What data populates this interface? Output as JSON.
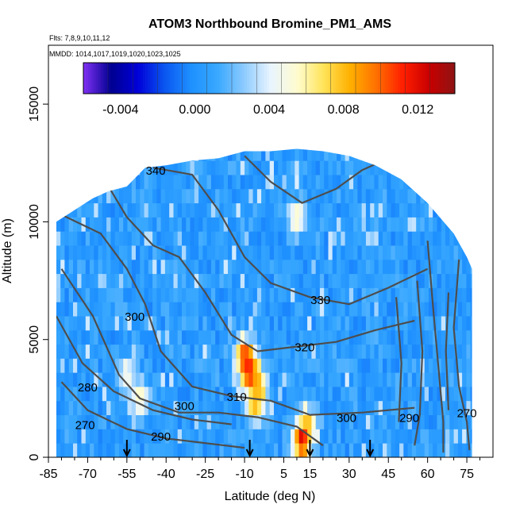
{
  "chart_data": {
    "type": "heatmap",
    "title": "ATOM3 Northbound Bromine_PM1_AMS",
    "subtitle_flights": "Flts: 7,8,9,10,11,12",
    "subtitle_dates": "MMDD: 1014,1017,1019,1020,1023,1025",
    "xlabel": "Latitude (deg N)",
    "ylabel": "Altitude (m)",
    "xlim": [
      -85,
      85
    ],
    "ylim": [
      0,
      17500
    ],
    "x_ticks": [
      -85,
      -70,
      -55,
      -40,
      -25,
      -10,
      5,
      15,
      30,
      45,
      60,
      75
    ],
    "y_ticks": [
      0,
      5000,
      10000,
      15000
    ],
    "colorbar": {
      "range": [
        -0.006,
        0.014
      ],
      "ticks": [
        -0.004,
        0.0,
        0.004,
        0.008,
        0.012
      ],
      "tick_labels": [
        "-0.004",
        "0.000",
        "0.004",
        "0.008",
        "0.012"
      ]
    },
    "color_scale": [
      "#7b2ff0",
      "#000090",
      "#0000d8",
      "#0a55f0",
      "#1e90ff",
      "#38a8ff",
      "#8ccaff",
      "#e8f4ff",
      "#fffcd0",
      "#ffe45a",
      "#ffb000",
      "#ff7000",
      "#ff1e00",
      "#c80000",
      "#8b1515"
    ],
    "hotspots": [
      {
        "lat": -10,
        "alt": 4300,
        "value": 0.011
      },
      {
        "lat": -8,
        "alt": 3600,
        "value": 0.012
      },
      {
        "lat": -5,
        "alt": 3000,
        "value": 0.009
      },
      {
        "lat": -6,
        "alt": 2200,
        "value": 0.008
      },
      {
        "lat": 12,
        "alt": 700,
        "value": 0.013
      },
      {
        "lat": 14,
        "alt": 1400,
        "value": 0.008
      },
      {
        "lat": 10,
        "alt": 10200,
        "value": 0.006
      },
      {
        "lat": -55,
        "alt": 3500,
        "value": 0.005
      },
      {
        "lat": -50,
        "alt": 2500,
        "value": 0.006
      }
    ],
    "contour_labels": [
      {
        "text": "340",
        "lat": -44,
        "alt": 12000
      },
      {
        "text": "330",
        "lat": 19,
        "alt": 6500
      },
      {
        "text": "320",
        "lat": 13,
        "alt": 4500
      },
      {
        "text": "310",
        "lat": -13,
        "alt": 2400
      },
      {
        "text": "300",
        "lat": -52,
        "alt": 5800
      },
      {
        "text": "300",
        "lat": -33,
        "alt": 2000
      },
      {
        "text": "300",
        "lat": 29,
        "alt": 1500
      },
      {
        "text": "290",
        "lat": -42,
        "alt": 700
      },
      {
        "text": "290",
        "lat": 53,
        "alt": 1500
      },
      {
        "text": "280",
        "lat": -70,
        "alt": 2800
      },
      {
        "text": "270",
        "lat": -71,
        "alt": 1200
      },
      {
        "text": "270",
        "lat": 75,
        "alt": 1700
      }
    ],
    "flight_markers_lat": [
      -55,
      -8,
      15,
      38
    ]
  }
}
